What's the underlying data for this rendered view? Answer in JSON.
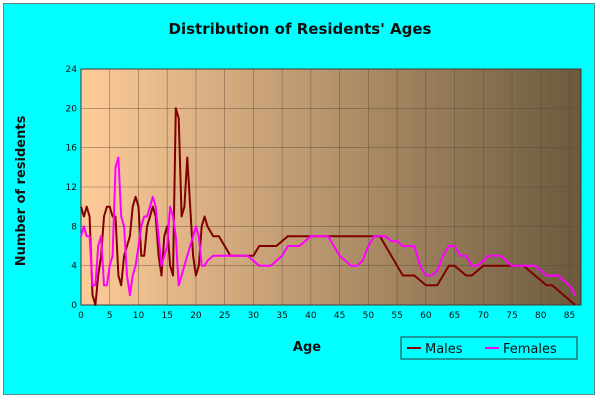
{
  "chart_data": {
    "type": "line",
    "title": "Distribution of Residents' Ages",
    "xlabel": "Age",
    "ylabel": "Number of residents",
    "xlim": [
      0,
      87
    ],
    "ylim": [
      0,
      24
    ],
    "x_ticks": [
      0,
      5,
      10,
      15,
      20,
      25,
      30,
      35,
      40,
      45,
      50,
      55,
      60,
      65,
      70,
      75,
      80,
      85
    ],
    "y_ticks": [
      0,
      4,
      8,
      12,
      16,
      20,
      24
    ],
    "grid": true,
    "legend_position": "bottom-right",
    "background_colors": [
      "#ffcc99",
      "#6b5a3e"
    ],
    "series": [
      {
        "name": "Males",
        "color": "#800000",
        "points": [
          [
            0,
            10
          ],
          [
            0.5,
            9
          ],
          [
            1,
            10
          ],
          [
            1.5,
            9
          ],
          [
            2,
            1
          ],
          [
            2.5,
            0
          ],
          [
            3,
            3
          ],
          [
            3.5,
            5
          ],
          [
            4,
            9
          ],
          [
            4.5,
            10
          ],
          [
            5,
            10
          ],
          [
            5.5,
            9
          ],
          [
            6,
            9
          ],
          [
            6.5,
            3
          ],
          [
            7,
            2
          ],
          [
            7.5,
            5
          ],
          [
            8,
            6
          ],
          [
            8.5,
            7
          ],
          [
            9,
            10
          ],
          [
            9.5,
            11
          ],
          [
            10,
            10
          ],
          [
            10.5,
            5
          ],
          [
            11,
            5
          ],
          [
            11.5,
            8
          ],
          [
            12,
            9
          ],
          [
            12.5,
            10
          ],
          [
            13,
            9
          ],
          [
            13.5,
            5
          ],
          [
            14,
            3
          ],
          [
            14.5,
            7
          ],
          [
            15,
            8
          ],
          [
            15.5,
            4
          ],
          [
            16,
            3
          ],
          [
            16.5,
            20
          ],
          [
            17,
            19
          ],
          [
            17.5,
            9
          ],
          [
            18,
            10
          ],
          [
            18.5,
            15
          ],
          [
            19,
            10
          ],
          [
            19.5,
            5
          ],
          [
            20,
            3
          ],
          [
            20.5,
            4
          ],
          [
            21,
            8
          ],
          [
            21.5,
            9
          ],
          [
            22,
            8
          ],
          [
            23,
            7
          ],
          [
            24,
            7
          ],
          [
            25,
            6
          ],
          [
            26,
            5
          ],
          [
            27,
            5
          ],
          [
            28,
            5
          ],
          [
            29,
            5
          ],
          [
            30,
            5
          ],
          [
            31,
            6
          ],
          [
            32,
            6
          ],
          [
            33,
            6
          ],
          [
            34,
            6
          ],
          [
            35,
            6.5
          ],
          [
            36,
            7
          ],
          [
            38,
            7
          ],
          [
            40,
            7
          ],
          [
            42,
            7
          ],
          [
            44,
            7
          ],
          [
            46,
            7
          ],
          [
            48,
            7
          ],
          [
            50,
            7
          ],
          [
            52,
            7
          ],
          [
            53,
            6
          ],
          [
            54,
            5
          ],
          [
            55,
            4
          ],
          [
            56,
            3
          ],
          [
            57,
            3
          ],
          [
            58,
            3
          ],
          [
            59,
            2.5
          ],
          [
            60,
            2
          ],
          [
            61,
            2
          ],
          [
            62,
            2
          ],
          [
            63,
            3
          ],
          [
            64,
            4
          ],
          [
            65,
            4
          ],
          [
            66,
            3.5
          ],
          [
            67,
            3
          ],
          [
            68,
            3
          ],
          [
            69,
            3.5
          ],
          [
            70,
            4
          ],
          [
            71,
            4
          ],
          [
            72,
            4
          ],
          [
            73,
            4
          ],
          [
            74,
            4
          ],
          [
            75,
            4
          ],
          [
            76,
            4
          ],
          [
            77,
            4
          ],
          [
            78,
            3.5
          ],
          [
            79,
            3
          ],
          [
            80,
            2.5
          ],
          [
            81,
            2
          ],
          [
            82,
            2
          ],
          [
            83,
            1.5
          ],
          [
            84,
            1
          ],
          [
            85,
            0.5
          ],
          [
            86,
            0
          ]
        ]
      },
      {
        "name": "Females",
        "color": "#ff00ff",
        "points": [
          [
            0,
            7
          ],
          [
            0.5,
            8
          ],
          [
            1,
            7
          ],
          [
            1.5,
            7
          ],
          [
            2,
            2
          ],
          [
            2.5,
            2
          ],
          [
            3,
            6
          ],
          [
            3.5,
            7
          ],
          [
            4,
            2
          ],
          [
            4.5,
            2
          ],
          [
            5,
            4
          ],
          [
            5.5,
            5
          ],
          [
            6,
            14
          ],
          [
            6.5,
            15
          ],
          [
            7,
            9
          ],
          [
            7.5,
            8
          ],
          [
            8,
            3
          ],
          [
            8.5,
            1
          ],
          [
            9,
            3
          ],
          [
            9.5,
            4
          ],
          [
            10,
            6
          ],
          [
            10.5,
            8
          ],
          [
            11,
            9
          ],
          [
            11.5,
            9
          ],
          [
            12,
            10
          ],
          [
            12.5,
            11
          ],
          [
            13,
            10
          ],
          [
            13.5,
            7
          ],
          [
            14,
            4
          ],
          [
            14.5,
            5
          ],
          [
            15,
            6
          ],
          [
            15.5,
            10
          ],
          [
            16,
            9
          ],
          [
            16.5,
            7
          ],
          [
            17,
            2
          ],
          [
            17.5,
            3
          ],
          [
            18,
            4
          ],
          [
            18.5,
            5
          ],
          [
            19,
            6
          ],
          [
            19.5,
            7
          ],
          [
            20,
            8
          ],
          [
            20.5,
            7
          ],
          [
            21,
            4
          ],
          [
            21.5,
            4
          ],
          [
            22,
            4.5
          ],
          [
            23,
            5
          ],
          [
            24,
            5
          ],
          [
            25,
            5
          ],
          [
            26,
            5
          ],
          [
            27,
            5
          ],
          [
            28,
            5
          ],
          [
            29,
            5
          ],
          [
            30,
            4.5
          ],
          [
            31,
            4
          ],
          [
            32,
            4
          ],
          [
            33,
            4
          ],
          [
            34,
            4.5
          ],
          [
            35,
            5
          ],
          [
            36,
            6
          ],
          [
            37,
            6
          ],
          [
            38,
            6
          ],
          [
            39,
            6.5
          ],
          [
            40,
            7
          ],
          [
            41,
            7
          ],
          [
            42,
            7
          ],
          [
            43,
            7
          ],
          [
            44,
            6
          ],
          [
            45,
            5
          ],
          [
            46,
            4.5
          ],
          [
            47,
            4
          ],
          [
            48,
            4
          ],
          [
            49,
            4.5
          ],
          [
            50,
            6
          ],
          [
            51,
            7
          ],
          [
            52,
            7
          ],
          [
            53,
            7
          ],
          [
            54,
            6.5
          ],
          [
            55,
            6.5
          ],
          [
            56,
            6
          ],
          [
            57,
            6
          ],
          [
            58,
            6
          ],
          [
            59,
            4
          ],
          [
            60,
            3
          ],
          [
            61,
            3
          ],
          [
            62,
            3.5
          ],
          [
            63,
            5
          ],
          [
            64,
            6
          ],
          [
            65,
            6
          ],
          [
            66,
            5
          ],
          [
            67,
            5
          ],
          [
            68,
            4
          ],
          [
            69,
            4
          ],
          [
            70,
            4.5
          ],
          [
            71,
            5
          ],
          [
            72,
            5
          ],
          [
            73,
            5
          ],
          [
            74,
            4.5
          ],
          [
            75,
            4
          ],
          [
            76,
            4
          ],
          [
            77,
            4
          ],
          [
            78,
            4
          ],
          [
            79,
            4
          ],
          [
            80,
            3.5
          ],
          [
            81,
            3
          ],
          [
            82,
            3
          ],
          [
            83,
            3
          ],
          [
            84,
            2.5
          ],
          [
            85,
            2
          ],
          [
            86,
            1
          ]
        ]
      }
    ]
  }
}
